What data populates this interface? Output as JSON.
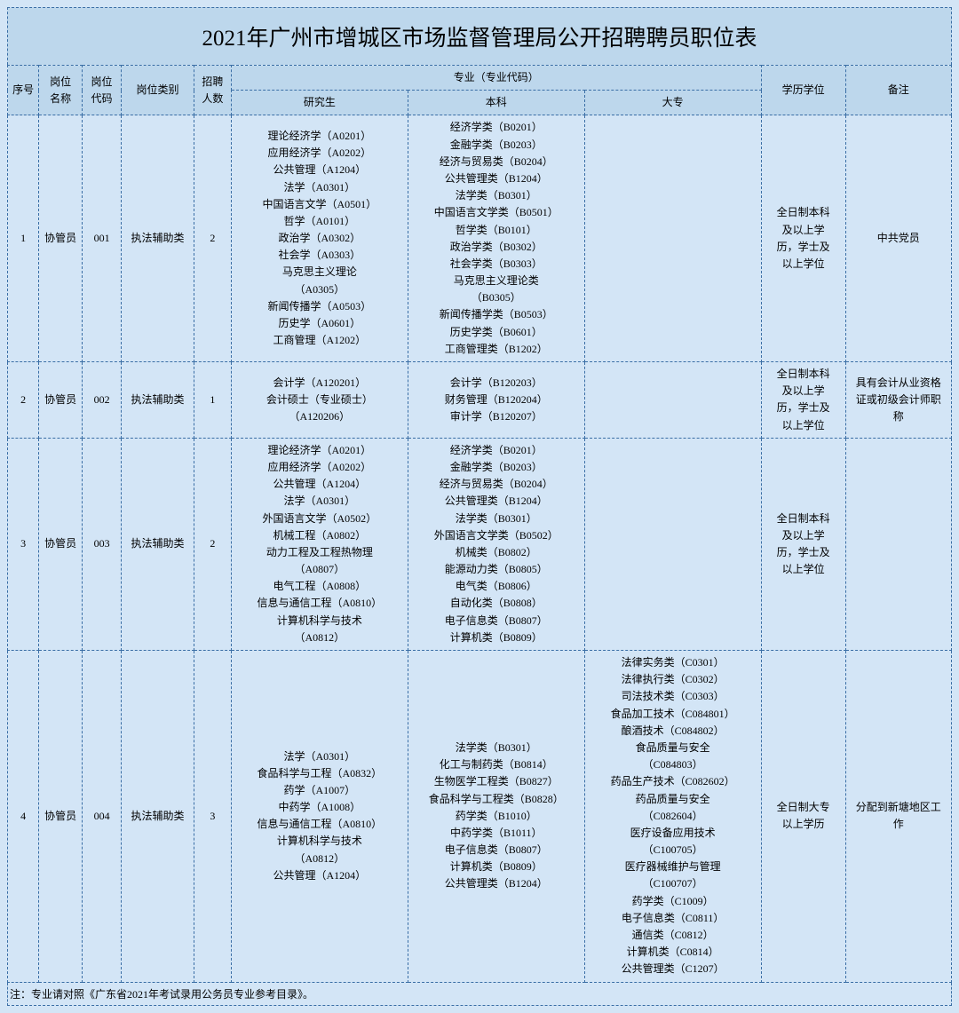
{
  "title": "2021年广州市增城区市场监督管理局公开招聘聘员职位表",
  "headers": {
    "seq": "序号",
    "position_name": "岗位\n名称",
    "position_code": "岗位\n代码",
    "category": "岗位类别",
    "count": "招聘\n人数",
    "major_group": "专业（专业代码）",
    "grad": "研究生",
    "undergrad": "本科",
    "junior": "大专",
    "education": "学历学位",
    "note": "备注"
  },
  "rows": [
    {
      "seq": "1",
      "position_name": "协管员",
      "position_code": "001",
      "category": "执法辅助类",
      "count": "2",
      "grad": "理论经济学（A0201）\n应用经济学（A0202）\n公共管理（A1204）\n法学（A0301）\n中国语言文学（A0501）\n哲学（A0101）\n政治学（A0302）\n社会学（A0303）\n马克思主义理论\n（A0305）\n新闻传播学（A0503）\n历史学（A0601）\n工商管理（A1202）",
      "undergrad": "经济学类（B0201）\n金融学类（B0203）\n经济与贸易类（B0204）\n公共管理类（B1204）\n法学类（B0301）\n中国语言文学类（B0501）\n哲学类（B0101）\n政治学类（B0302）\n社会学类（B0303）\n马克思主义理论类\n（B0305）\n新闻传播学类（B0503）\n历史学类（B0601）\n工商管理类（B1202）",
      "junior": "",
      "education": "全日制本科\n及以上学\n历，学士及\n以上学位",
      "note": "中共党员"
    },
    {
      "seq": "2",
      "position_name": "协管员",
      "position_code": "002",
      "category": "执法辅助类",
      "count": "1",
      "grad": "会计学（A120201）\n会计硕士（专业硕士）\n（A120206）",
      "undergrad": "会计学（B120203）\n财务管理（B120204）\n审计学（B120207）",
      "junior": "",
      "education": "全日制本科\n及以上学\n历，学士及\n以上学位",
      "note": "具有会计从业资格\n证或初级会计师职\n称"
    },
    {
      "seq": "3",
      "position_name": "协管员",
      "position_code": "003",
      "category": "执法辅助类",
      "count": "2",
      "grad": "理论经济学（A0201）\n应用经济学（A0202）\n公共管理（A1204）\n法学（A0301）\n外国语言文学（A0502）\n机械工程（A0802）\n动力工程及工程热物理\n（A0807）\n电气工程（A0808）\n信息与通信工程（A0810）\n计算机科学与技术\n（A0812）",
      "undergrad": "经济学类（B0201）\n金融学类（B0203）\n经济与贸易类（B0204）\n公共管理类（B1204）\n法学类（B0301）\n外国语言文学类（B0502）\n机械类（B0802）\n能源动力类（B0805）\n电气类（B0806）\n自动化类（B0808）\n电子信息类（B0807）\n计算机类（B0809）",
      "junior": "",
      "education": "全日制本科\n及以上学\n历，学士及\n以上学位",
      "note": ""
    },
    {
      "seq": "4",
      "position_name": "协管员",
      "position_code": "004",
      "category": "执法辅助类",
      "count": "3",
      "grad": "法学（A0301）\n食品科学与工程（A0832）\n药学（A1007）\n中药学（A1008）\n信息与通信工程（A0810）\n计算机科学与技术\n（A0812）\n公共管理（A1204）",
      "undergrad": "法学类（B0301）\n化工与制药类（B0814）\n生物医学工程类（B0827）\n食品科学与工程类（B0828）\n药学类（B1010）\n中药学类（B1011）\n电子信息类（B0807）\n计算机类（B0809）\n公共管理类（B1204）",
      "junior": "法律实务类（C0301）\n法律执行类（C0302）\n司法技术类（C0303）\n食品加工技术（C084801）\n酿酒技术（C084802）\n食品质量与安全\n（C084803）\n药品生产技术（C082602）\n药品质量与安全\n（C082604）\n医疗设备应用技术\n（C100705）\n医疗器械维护与管理\n（C100707）\n药学类（C1009）\n电子信息类（C0811）\n通信类（C0812）\n计算机类（C0814）\n公共管理类（C1207）",
      "education": "全日制大专\n以上学历",
      "note": "分配到新塘地区工\n作"
    }
  ],
  "footnote": "注：专业请对照《广东省2021年考试录用公务员专业参考目录》。"
}
